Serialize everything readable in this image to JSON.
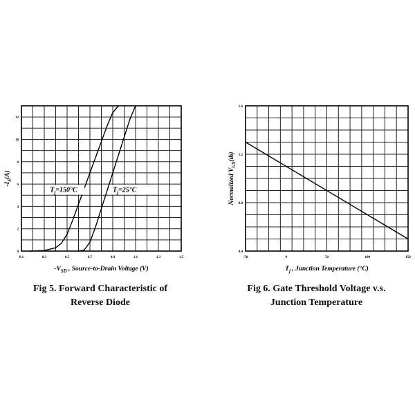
{
  "figures": [
    {
      "caption_line1": "Fig 5. Forward Characteristic of",
      "caption_line2": "Reverse Diode"
    },
    {
      "caption_line1": "Fig 6. Gate Threshold Voltage v.s.",
      "caption_line2": "Junction Temperature"
    }
  ],
  "chart_data": [
    {
      "type": "line",
      "title": "Fig 5. Forward Characteristic of Reverse Diode",
      "xlabel": "-V_SD , Source-to-Drain Voltage (V)",
      "ylabel": "-I_S(A)",
      "xlim": [
        0.1,
        1.5
      ],
      "ylim": [
        0,
        13
      ],
      "x_ticks": [
        "0.1",
        "0.3",
        "0.5",
        "0.7",
        "0.9",
        "1.1",
        "1.3",
        "1.5"
      ],
      "y_ticks": [
        "0",
        "2",
        "4",
        "6",
        "8",
        "10",
        "12"
      ],
      "grid": true,
      "series": [
        {
          "name": "T_j=150°C",
          "x": [
            0.18,
            0.3,
            0.4,
            0.45,
            0.5,
            0.55,
            0.6,
            0.65,
            0.7,
            0.75,
            0.8,
            0.85,
            0.9,
            0.95
          ],
          "y": [
            0,
            0.05,
            0.3,
            0.7,
            1.5,
            2.8,
            4.2,
            5.6,
            7.0,
            8.4,
            9.8,
            11.2,
            12.4,
            13.0
          ]
        },
        {
          "name": "T_j=25°C",
          "x": [
            0.6,
            0.65,
            0.7,
            0.75,
            0.8,
            0.85,
            0.9,
            0.95,
            1.0,
            1.05,
            1.1
          ],
          "y": [
            0,
            0.1,
            0.8,
            2.2,
            3.8,
            5.4,
            7.0,
            8.6,
            10.2,
            11.8,
            13.0
          ]
        }
      ],
      "annotations": [
        {
          "text": "T_j=150°C",
          "x": 0.35,
          "y": 5.3
        },
        {
          "text": "T_j=25°C",
          "x": 0.9,
          "y": 5.3
        }
      ]
    },
    {
      "type": "line",
      "title": "Fig 6. Gate Threshold Voltage v.s. Junction Temperature",
      "xlabel": "T_j , Junction Temperature (°C)",
      "ylabel": "Normalized V_GS(th)",
      "xlim": [
        -50,
        150
      ],
      "ylim": [
        0.4,
        1.6
      ],
      "x_ticks": [
        "-50",
        "0",
        "50",
        "100",
        "150"
      ],
      "y_ticks": [
        "0.4",
        "0.8",
        "1.2",
        "1.6"
      ],
      "grid": true,
      "series": [
        {
          "name": "",
          "x": [
            -50,
            150
          ],
          "y": [
            1.3,
            0.5
          ]
        }
      ]
    }
  ]
}
